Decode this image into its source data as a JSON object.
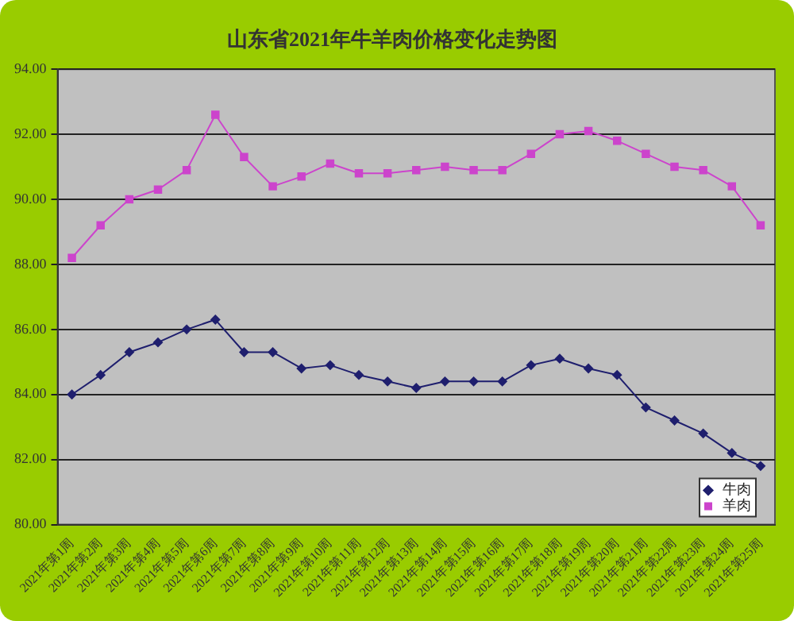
{
  "chart_data": {
    "type": "line",
    "title": "山东省2021年牛羊肉价格变化走势图",
    "categories": [
      "2021年第1周",
      "2021年第2周",
      "2021年第3周",
      "2021年第4周",
      "2021年第5周",
      "2021年第6周",
      "2021年第7周",
      "2021年第8周",
      "2021年第9周",
      "2021年第10周",
      "2021年第11周",
      "2021年第12周",
      "2021年第13周",
      "2021年第14周",
      "2021年第15周",
      "2021年第16周",
      "2021年第17周",
      "2021年第18周",
      "2021年第19周",
      "2021年第20周",
      "2021年第21周",
      "2021年第22周",
      "2021年第23周",
      "2021年第24周",
      "2021年第25周"
    ],
    "series": [
      {
        "name": "牛肉",
        "color": "#1f1f6e",
        "marker": "diamond",
        "values": [
          84.0,
          84.6,
          85.3,
          85.6,
          86.0,
          86.3,
          85.3,
          85.3,
          84.8,
          84.9,
          84.6,
          84.4,
          84.2,
          84.4,
          84.4,
          84.4,
          84.9,
          85.1,
          84.8,
          84.6,
          83.6,
          83.2,
          82.8,
          82.2,
          81.8
        ]
      },
      {
        "name": "羊肉",
        "color": "#cc44cc",
        "marker": "square",
        "values": [
          88.2,
          89.2,
          90.0,
          90.3,
          90.9,
          92.6,
          91.3,
          90.4,
          90.7,
          91.1,
          90.8,
          90.8,
          90.9,
          91.0,
          90.9,
          90.9,
          91.4,
          92.0,
          92.1,
          91.8,
          91.4,
          91.0,
          90.9,
          90.4,
          89.2
        ]
      }
    ],
    "ylim": [
      80,
      94
    ],
    "yticks": [
      {
        "value": 80,
        "label": "80.00"
      },
      {
        "value": 82,
        "label": "82.00"
      },
      {
        "value": 84,
        "label": "84.00"
      },
      {
        "value": 86,
        "label": "86.00"
      },
      {
        "value": 88,
        "label": "88.00"
      },
      {
        "value": 90,
        "label": "90.00"
      },
      {
        "value": 92,
        "label": "92.00"
      },
      {
        "value": 94,
        "label": "94.00"
      }
    ],
    "grid": "y",
    "legend": "bottom right",
    "line_style": "solid"
  }
}
